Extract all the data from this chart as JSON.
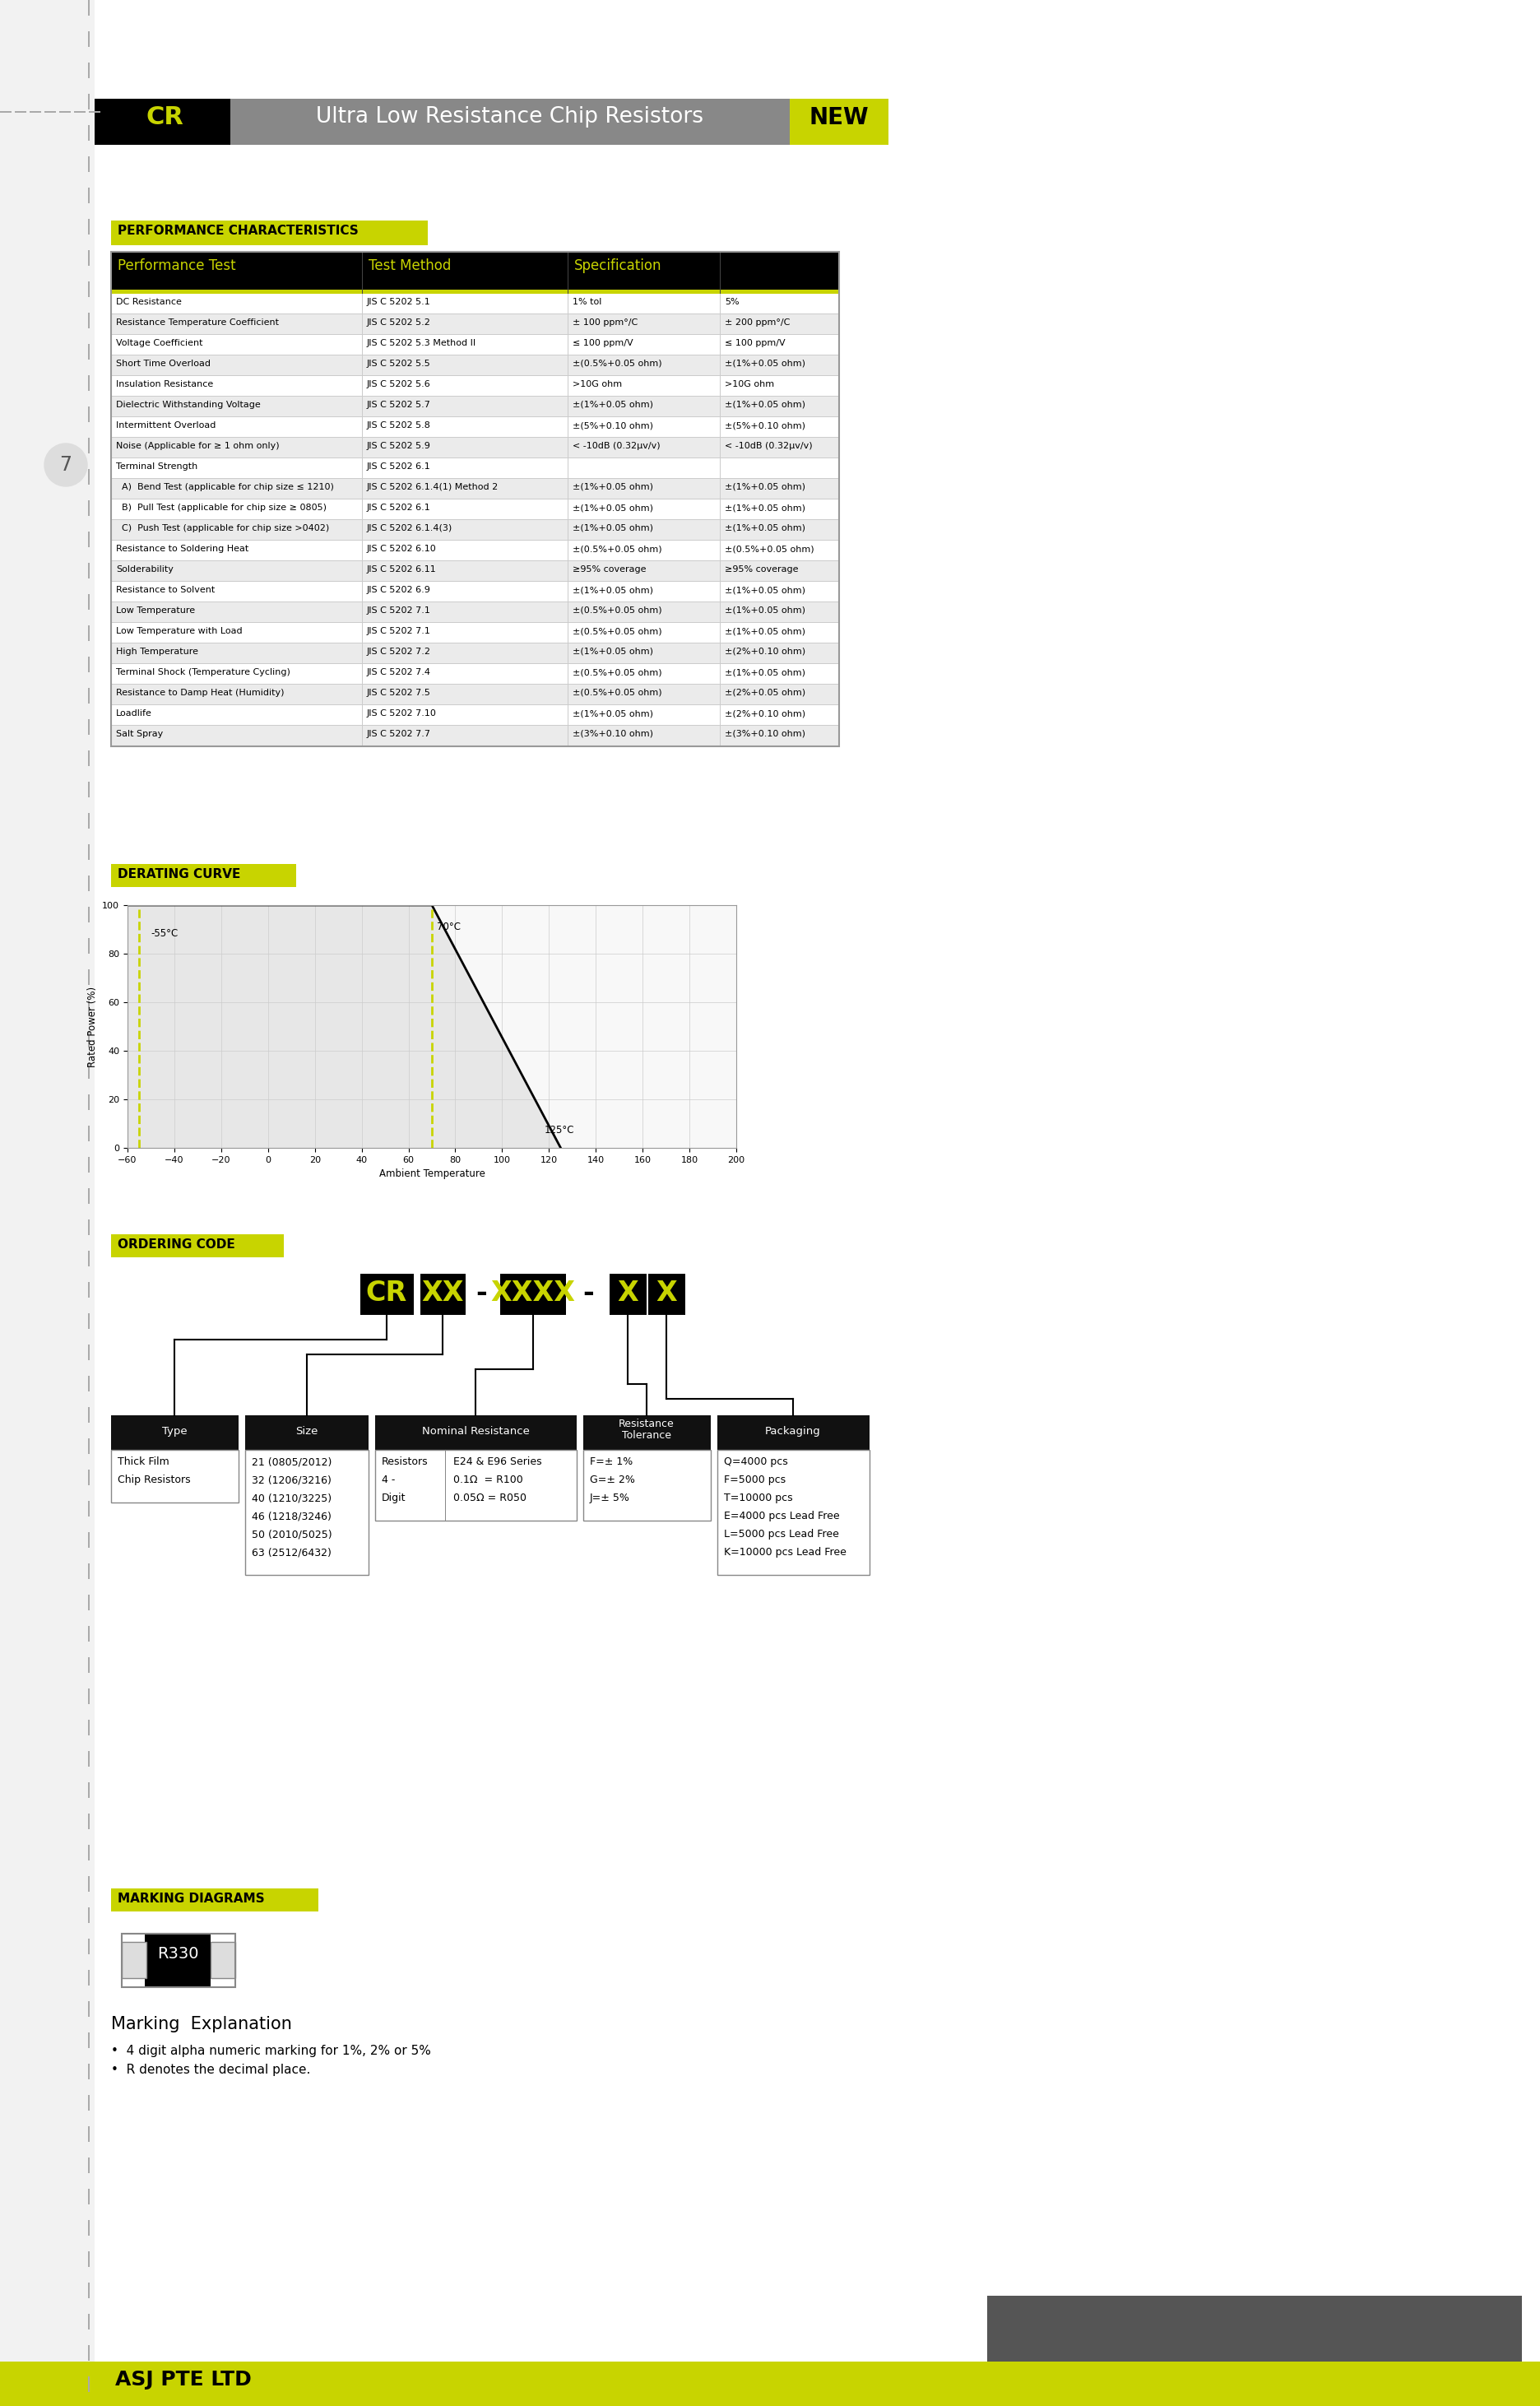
{
  "title_cr": "CR",
  "title_text": "Ultra Low Resistance Chip Resistors",
  "title_new": "NEW",
  "header_bg": "#888888",
  "header_cr_bg": "#000000",
  "header_new_bg": "#c8d400",
  "header_cr_color": "#c8d400",
  "header_text_color": "#ffffff",
  "header_new_color": "#000000",
  "section_label_bg": "#c8d400",
  "section_label_color": "#000000",
  "table_header_bg": "#000000",
  "table_header_color": "#c8d400",
  "table_row_bg1": "#ffffff",
  "table_row_bg2": "#e8e8e8",
  "page_bg": "#ffffff",
  "perf_section": "PERFORMANCE CHARACTERISTICS",
  "table_headers": [
    "Performance Test",
    "Test Method",
    "Specification"
  ],
  "table_rows": [
    [
      "DC Resistance",
      "JIS C 5202 5.1",
      "1% tol",
      "5%"
    ],
    [
      "Resistance Temperature Coefficient",
      "JIS C 5202 5.2",
      "± 100 ppm°/C",
      "± 200 ppm°/C"
    ],
    [
      "Voltage Coefficient",
      "JIS C 5202 5.3 Method II",
      "≤ 100 ppm/V",
      "≤ 100 ppm/V"
    ],
    [
      "Short Time Overload",
      "JIS C 5202 5.5",
      "±(0.5%+0.05 ohm)",
      "±(1%+0.05 ohm)"
    ],
    [
      "Insulation Resistance",
      "JIS C 5202 5.6",
      ">10G ohm",
      ">10G ohm"
    ],
    [
      "Dielectric Withstanding Voltage",
      "JIS C 5202 5.7",
      "±(1%+0.05 ohm)",
      "±(1%+0.05 ohm)"
    ],
    [
      "Intermittent Overload",
      "JIS C 5202 5.8",
      "±(5%+0.10 ohm)",
      "±(5%+0.10 ohm)"
    ],
    [
      "Noise (Applicable for ≥ 1 ohm only)",
      "JIS C 5202 5.9",
      "< -10dB (0.32μv/v)",
      "< -10dB (0.32μv/v)"
    ],
    [
      "Terminal Strength",
      "JIS C 5202 6.1",
      "",
      ""
    ],
    [
      "  A)  Bend Test (applicable for chip size ≤ 1210)",
      "JIS C 5202 6.1.4(1) Method 2",
      "±(1%+0.05 ohm)",
      "±(1%+0.05 ohm)"
    ],
    [
      "  B)  Pull Test (applicable for chip size ≥ 0805)",
      "JIS C 5202 6.1",
      "±(1%+0.05 ohm)",
      "±(1%+0.05 ohm)"
    ],
    [
      "  C)  Push Test (applicable for chip size >0402)",
      "JIS C 5202 6.1.4(3)",
      "±(1%+0.05 ohm)",
      "±(1%+0.05 ohm)"
    ],
    [
      "Resistance to Soldering Heat",
      "JIS C 5202 6.10",
      "±(0.5%+0.05 ohm)",
      "±(0.5%+0.05 ohm)"
    ],
    [
      "Solderability",
      "JIS C 5202 6.11",
      "≥95% coverage",
      "≥95% coverage"
    ],
    [
      "Resistance to Solvent",
      "JIS C 5202 6.9",
      "±(1%+0.05 ohm)",
      "±(1%+0.05 ohm)"
    ],
    [
      "Low Temperature",
      "JIS C 5202 7.1",
      "±(0.5%+0.05 ohm)",
      "±(1%+0.05 ohm)"
    ],
    [
      "Low Temperature with Load",
      "JIS C 5202 7.1",
      "±(0.5%+0.05 ohm)",
      "±(1%+0.05 ohm)"
    ],
    [
      "High Temperature",
      "JIS C 5202 7.2",
      "±(1%+0.05 ohm)",
      "±(2%+0.10 ohm)"
    ],
    [
      "Terminal Shock (Temperature Cycling)",
      "JIS C 5202 7.4",
      "±(0.5%+0.05 ohm)",
      "±(1%+0.05 ohm)"
    ],
    [
      "Resistance to Damp Heat (Humidity)",
      "JIS C 5202 7.5",
      "±(0.5%+0.05 ohm)",
      "±(2%+0.05 ohm)"
    ],
    [
      "Loadlife",
      "JIS C 5202 7.10",
      "±(1%+0.05 ohm)",
      "±(2%+0.10 ohm)"
    ],
    [
      "Salt Spray",
      "JIS C 5202 7.7",
      "±(3%+0.10 ohm)",
      "±(3%+0.10 ohm)"
    ]
  ],
  "derating_section": "DERATING CURVE",
  "ordering_section": "ORDERING CODE",
  "marking_section": "MARKING DIAGRAMS",
  "footer_text": "ASJ PTE LTD",
  "footer_bg": "#c8d400",
  "page_num": "7",
  "type_items": [
    "Thick Film",
    "Chip Resistors"
  ],
  "size_items": [
    "21 (0805/2012)",
    "32 (1206/3216)",
    "40 (1210/3225)",
    "46 (1218/3246)",
    "50 (2010/5025)",
    "63 (2512/6432)"
  ],
  "tolerance_items": [
    "F=± 1%",
    "G=± 2%",
    "J=± 5%"
  ],
  "packaging_items": [
    "Q=4000 pcs",
    "F=5000 pcs",
    "T=10000 pcs",
    "E=4000 pcs Lead Free",
    "L=5000 pcs Lead Free",
    "K=10000 pcs Lead Free"
  ],
  "marking_code": "R330",
  "marking_bullets": [
    "4 digit alpha numeric marking for 1%, 2% or 5%",
    "R denotes the decimal place."
  ]
}
